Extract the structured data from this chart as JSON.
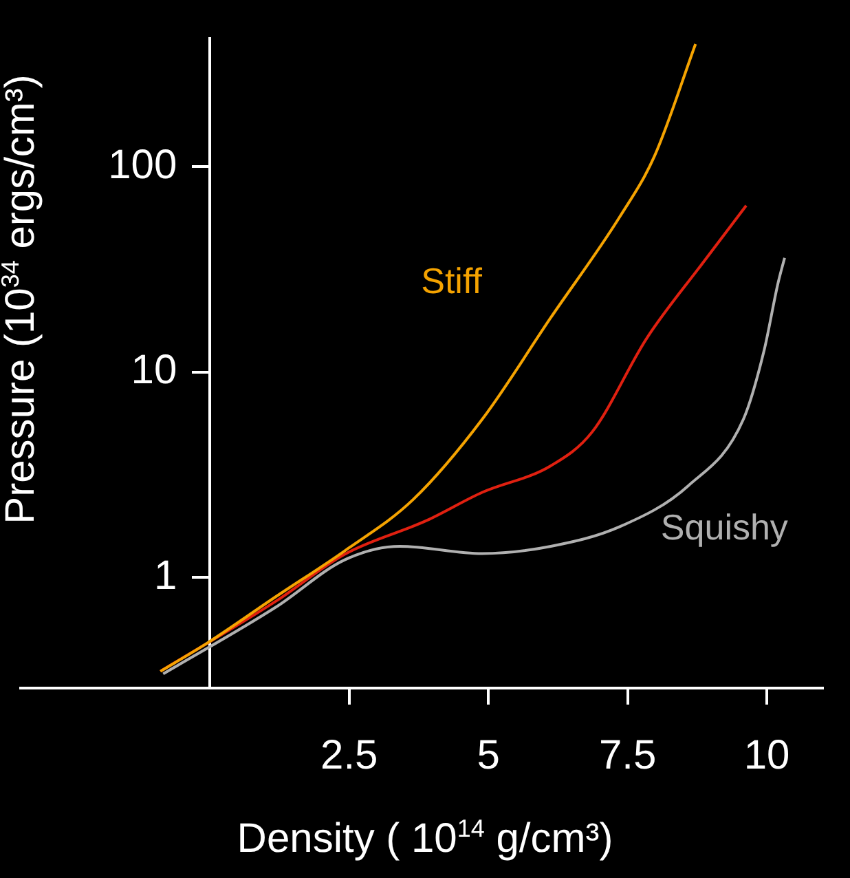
{
  "chart_data": {
    "type": "line",
    "xlabel": "Density ( 10$^{14}$ g/cm³)",
    "ylabel": "Pressure (10$^{34}$ ergs/cm³)",
    "log": "y",
    "xlim": [
      -3.4,
      11
    ],
    "xticks": [
      2.5,
      5,
      7.5,
      10
    ],
    "ylim": [
      0.29,
      420
    ],
    "yticks": [
      1,
      10,
      100
    ],
    "grid": false,
    "legend": false,
    "marker": "none",
    "line_style": "solid",
    "series": [
      {
        "name": "Stiff",
        "color": "#f5a300",
        "x": [
          -0.89,
          -0.05,
          1.19,
          2.42,
          3.65,
          4.89,
          6.12,
          7.36,
          7.98,
          8.72
        ],
        "values": [
          0.35,
          0.48,
          0.81,
          1.35,
          2.4,
          5.9,
          18.4,
          57,
          112,
          395
        ]
      },
      {
        "color": "#e02010",
        "x": [
          -0.89,
          1.19,
          2.42,
          3.9,
          4.89,
          6.12,
          6.86,
          7.85,
          8.84,
          9.63
        ],
        "values": [
          0.35,
          0.77,
          1.3,
          1.9,
          2.6,
          3.5,
          5.1,
          14.7,
          33.7,
          64.6
        ]
      },
      {
        "name": "Squishy",
        "color": "#b0b0b0",
        "x": [
          -0.84,
          1.19,
          2.42,
          3.41,
          4.89,
          6.12,
          7.36,
          8.59,
          9.58,
          9.95,
          10.2,
          10.32
        ],
        "values": [
          0.34,
          0.72,
          1.22,
          1.42,
          1.31,
          1.42,
          1.77,
          2.8,
          5.9,
          12.7,
          27,
          36
        ]
      }
    ]
  }
}
